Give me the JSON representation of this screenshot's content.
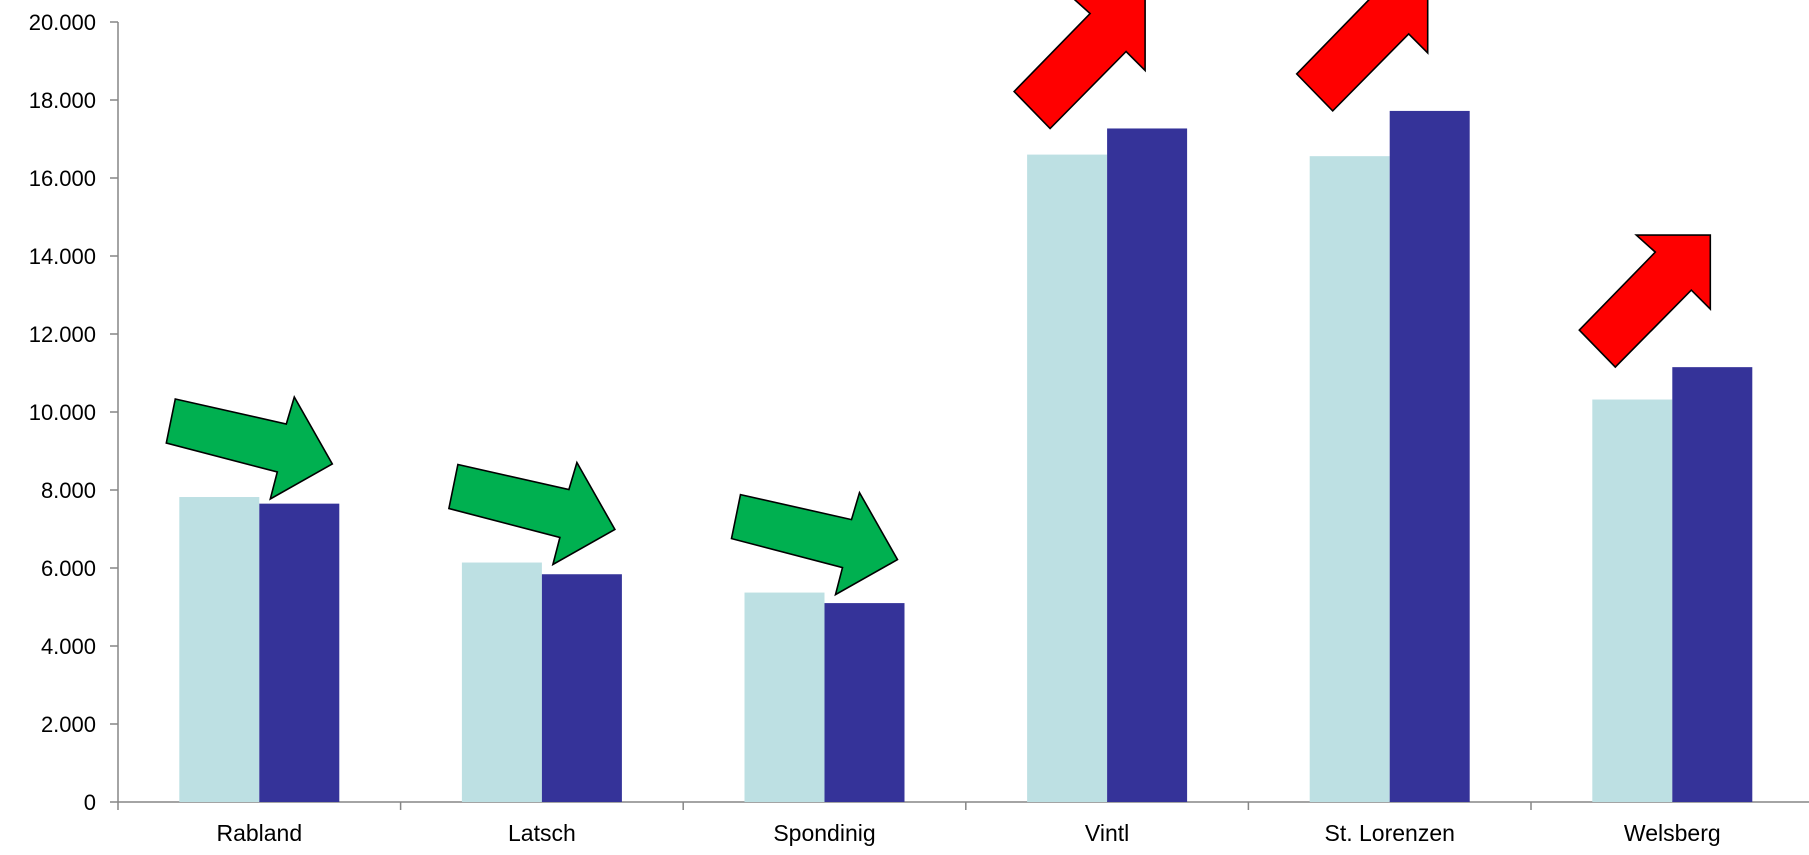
{
  "chart_data": {
    "type": "bar",
    "title": "",
    "xlabel": "",
    "ylabel": "",
    "ylim": [
      0,
      20000
    ],
    "y_ticks": [
      0,
      2000,
      4000,
      6000,
      8000,
      10000,
      12000,
      14000,
      16000,
      18000,
      20000
    ],
    "y_tick_labels": [
      "0",
      "2.000",
      "4.000",
      "6.000",
      "8.000",
      "10.000",
      "12.000",
      "14.000",
      "16.000",
      "18.000",
      "20.000"
    ],
    "grid": false,
    "legend": "none",
    "categories": [
      "Rabland",
      "Latsch",
      "Spondinig",
      "Vintl",
      "St. Lorenzen",
      "Welsberg"
    ],
    "series": [
      {
        "values": [
          7820,
          6140,
          5370,
          16600,
          16560,
          10320
        ],
        "color": "#bde0e3"
      },
      {
        "values": [
          7650,
          5840,
          5100,
          17270,
          17720,
          11150
        ],
        "color": "#353399"
      }
    ],
    "trend_arrows": [
      "down",
      "down",
      "down",
      "up",
      "up",
      "up"
    ],
    "trend_colors": {
      "down": "#00b050",
      "up": "#ff0000"
    }
  }
}
